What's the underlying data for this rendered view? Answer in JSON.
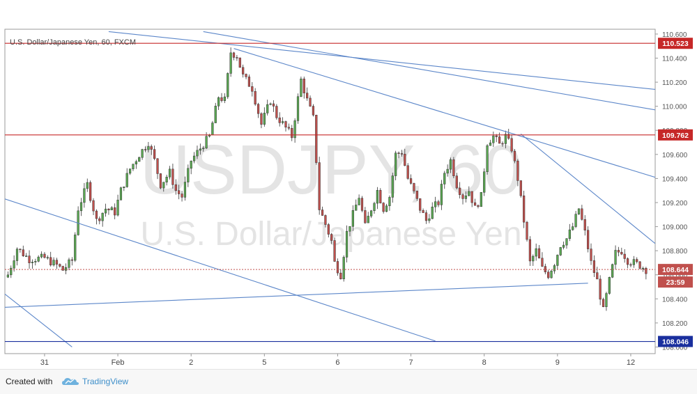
{
  "chart_data": {
    "type": "candlestick",
    "title": "U.S. Dollar/Japanese Yen, 60, FXCM",
    "watermark_symbol": "USDJPY, 60",
    "watermark_name": "U.S. Dollar/Japanese Yen",
    "ylim": [
      107.945,
      110.64
    ],
    "y_ticks": [
      "110.600",
      "110.400",
      "110.200",
      "110.000",
      "109.800",
      "109.600",
      "109.400",
      "109.200",
      "109.000",
      "108.800",
      "108.600",
      "108.400",
      "108.200",
      "108.000"
    ],
    "x_ticks": [
      {
        "label": "31",
        "t": 12
      },
      {
        "label": "Feb",
        "t": 36
      },
      {
        "label": "2",
        "t": 60
      },
      {
        "label": "5",
        "t": 84
      },
      {
        "label": "6",
        "t": 108
      },
      {
        "label": "7",
        "t": 132
      },
      {
        "label": "8",
        "t": 156
      },
      {
        "label": "9",
        "t": 180
      },
      {
        "label": "12",
        "t": 204
      }
    ],
    "price_levels": [
      {
        "value": 110.523,
        "label": "110.523",
        "color": "#c62828"
      },
      {
        "value": 109.762,
        "label": "109.762",
        "color": "#c62828"
      },
      {
        "value": 108.046,
        "label": "108.046",
        "color": "#1a2f9e"
      }
    ],
    "last_price": {
      "value": 108.644,
      "label": "108.644",
      "countdown": "23:59",
      "color": "#c0504d"
    },
    "trendlines": [
      {
        "t1": -1,
        "p1": 109.23,
        "t2": 140,
        "p2": 108.05
      },
      {
        "t1": 33,
        "p1": 110.62,
        "t2": 212,
        "p2": 110.14
      },
      {
        "t1": 64,
        "p1": 110.62,
        "t2": 212,
        "p2": 109.97
      },
      {
        "t1": -1,
        "p1": 108.33,
        "t2": 190,
        "p2": 108.53
      },
      {
        "t1": -1,
        "p1": 108.44,
        "t2": 21,
        "p2": 108.0
      },
      {
        "t1": 74,
        "p1": 110.48,
        "t2": 212,
        "p2": 109.41
      },
      {
        "t1": 168,
        "p1": 109.77,
        "t2": 212,
        "p2": 108.86
      }
    ],
    "series": [
      {
        "name": "USDJPY",
        "up_color": "#5aa852",
        "down_color": "#c0504d",
        "waypoints": [
          [
            0,
            108.6
          ],
          [
            3,
            108.82
          ],
          [
            7,
            108.73
          ],
          [
            12,
            108.74
          ],
          [
            16,
            108.68
          ],
          [
            18,
            108.64
          ],
          [
            21,
            108.72
          ],
          [
            23,
            109.15
          ],
          [
            26,
            109.35
          ],
          [
            29,
            109.05
          ],
          [
            32,
            109.15
          ],
          [
            35,
            109.12
          ],
          [
            37,
            109.3
          ],
          [
            40,
            109.48
          ],
          [
            43,
            109.6
          ],
          [
            46,
            109.7
          ],
          [
            48,
            109.55
          ],
          [
            50,
            109.35
          ],
          [
            53,
            109.45
          ],
          [
            55,
            109.3
          ],
          [
            57,
            109.25
          ],
          [
            60,
            109.55
          ],
          [
            63,
            109.65
          ],
          [
            66,
            109.75
          ],
          [
            69,
            110.08
          ],
          [
            71,
            110.05
          ],
          [
            73,
            110.45
          ],
          [
            75,
            110.42
          ],
          [
            77,
            110.25
          ],
          [
            80,
            110.15
          ],
          [
            83,
            109.85
          ],
          [
            86,
            110.05
          ],
          [
            88,
            109.92
          ],
          [
            91,
            109.82
          ],
          [
            93,
            109.75
          ],
          [
            96,
            110.22
          ],
          [
            98,
            110.05
          ],
          [
            100,
            109.9
          ],
          [
            101,
            109.55
          ],
          [
            102,
            109.15
          ],
          [
            104,
            109.02
          ],
          [
            106,
            108.88
          ],
          [
            107,
            108.7
          ],
          [
            109,
            108.6
          ],
          [
            111,
            108.95
          ],
          [
            113,
            109.1
          ],
          [
            115,
            109.25
          ],
          [
            117,
            109.0
          ],
          [
            119,
            109.15
          ],
          [
            121,
            109.3
          ],
          [
            123,
            109.15
          ],
          [
            125,
            109.25
          ],
          [
            127,
            109.6
          ],
          [
            129,
            109.62
          ],
          [
            131,
            109.4
          ],
          [
            133,
            109.28
          ],
          [
            135,
            109.15
          ],
          [
            137,
            109.05
          ],
          [
            139,
            109.15
          ],
          [
            141,
            109.2
          ],
          [
            143,
            109.45
          ],
          [
            145,
            109.55
          ],
          [
            147,
            109.35
          ],
          [
            149,
            109.25
          ],
          [
            151,
            109.3
          ],
          [
            153,
            109.15
          ],
          [
            155,
            109.25
          ],
          [
            157,
            109.7
          ],
          [
            159,
            109.75
          ],
          [
            161,
            109.68
          ],
          [
            163,
            109.75
          ],
          [
            165,
            109.65
          ],
          [
            167,
            109.4
          ],
          [
            169,
            109.05
          ],
          [
            171,
            108.7
          ],
          [
            173,
            108.8
          ],
          [
            175,
            108.65
          ],
          [
            177,
            108.6
          ],
          [
            179,
            108.7
          ],
          [
            181,
            108.85
          ],
          [
            183,
            108.9
          ],
          [
            185,
            109.0
          ],
          [
            187,
            109.15
          ],
          [
            189,
            108.95
          ],
          [
            191,
            108.7
          ],
          [
            193,
            108.55
          ],
          [
            195,
            108.3
          ],
          [
            197,
            108.55
          ],
          [
            199,
            108.78
          ],
          [
            201,
            108.8
          ],
          [
            203,
            108.72
          ],
          [
            205,
            108.7
          ],
          [
            207,
            108.68
          ],
          [
            209,
            108.644
          ]
        ]
      }
    ]
  },
  "footer": {
    "created_with": "Created with",
    "logo_icon": "tradingview-cloud-icon",
    "brand": "TradingView"
  }
}
